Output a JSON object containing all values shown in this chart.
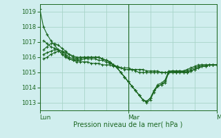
{
  "bg_color": "#d0eeee",
  "grid_color": "#a8d4c8",
  "line_color": "#1a6620",
  "xlabel": "Pression niveau de la mer( hPa )",
  "xtick_labels": [
    "Lun",
    "Mar",
    "Mer"
  ],
  "xtick_positions": [
    0,
    96,
    192
  ],
  "ylim": [
    1012.5,
    1019.5
  ],
  "yticks": [
    1013,
    1014,
    1015,
    1016,
    1017,
    1018,
    1019
  ],
  "xlim": [
    0,
    192
  ],
  "series": [
    {
      "x": [
        0,
        4,
        8,
        12,
        16,
        20,
        24,
        28,
        32,
        36,
        40,
        44,
        48,
        52,
        56,
        60,
        64,
        68,
        72,
        76,
        80,
        84,
        88,
        92,
        96,
        100,
        104,
        108,
        112,
        116,
        120,
        124,
        128,
        132,
        136,
        140,
        144,
        148,
        152,
        156,
        160,
        164,
        168,
        172,
        176,
        180,
        184,
        188,
        192
      ],
      "y": [
        1019.2,
        1018.0,
        1017.5,
        1017.1,
        1016.8,
        1016.5,
        1016.2,
        1016.0,
        1015.9,
        1015.8,
        1015.8,
        1015.7,
        1015.7,
        1015.7,
        1015.6,
        1015.6,
        1015.6,
        1015.5,
        1015.5,
        1015.5,
        1015.4,
        1015.4,
        1015.3,
        1015.3,
        1015.3,
        1015.2,
        1015.2,
        1015.2,
        1015.2,
        1015.1,
        1015.1,
        1015.1,
        1015.1,
        1015.0,
        1015.0,
        1015.0,
        1015.0,
        1015.0,
        1015.0,
        1015.1,
        1015.1,
        1015.2,
        1015.3,
        1015.4,
        1015.5,
        1015.5,
        1015.5,
        1015.5,
        1015.5
      ]
    },
    {
      "x": [
        4,
        8,
        12,
        16,
        20,
        24,
        28,
        32,
        36,
        40,
        44,
        48,
        52,
        56,
        60,
        64,
        68,
        72,
        76,
        80,
        84,
        88,
        92,
        96,
        100,
        104,
        108,
        112,
        116,
        120,
        124,
        128,
        132,
        136,
        140,
        144,
        148,
        152,
        156,
        160,
        164,
        168,
        172,
        176,
        180,
        184,
        188,
        192
      ],
      "y": [
        1017.1,
        1016.9,
        1016.7,
        1016.6,
        1016.5,
        1016.4,
        1016.3,
        1016.2,
        1016.1,
        1016.0,
        1016.0,
        1016.0,
        1015.9,
        1015.9,
        1015.9,
        1015.8,
        1015.8,
        1015.7,
        1015.6,
        1015.5,
        1015.4,
        1015.3,
        1015.2,
        1015.2,
        1015.2,
        1015.1,
        1015.0,
        1015.0,
        1015.0,
        1015.0,
        1015.0,
        1015.0,
        1015.0,
        1015.0,
        1015.0,
        1015.0,
        1015.0,
        1015.1,
        1015.1,
        1015.2,
        1015.3,
        1015.4,
        1015.5,
        1015.5,
        1015.5,
        1015.5,
        1015.5,
        1015.5
      ]
    },
    {
      "x": [
        4,
        8,
        12,
        16,
        20,
        24,
        28,
        32,
        36,
        40,
        44,
        48,
        52,
        56,
        60,
        64,
        68,
        72,
        76,
        80,
        84,
        88,
        92,
        96,
        100,
        104,
        108,
        112,
        116,
        120,
        124,
        128,
        132,
        136,
        140,
        144,
        148,
        152,
        156,
        160,
        164,
        168,
        172,
        176,
        180,
        184,
        188,
        192
      ],
      "y": [
        1016.5,
        1016.7,
        1016.9,
        1016.9,
        1016.8,
        1016.6,
        1016.4,
        1016.2,
        1016.0,
        1015.9,
        1016.0,
        1016.0,
        1016.0,
        1016.0,
        1016.0,
        1016.0,
        1015.9,
        1015.8,
        1015.7,
        1015.5,
        1015.3,
        1015.0,
        1014.7,
        1014.4,
        1014.1,
        1013.8,
        1013.5,
        1013.2,
        1013.1,
        1013.3,
        1013.8,
        1014.1,
        1014.2,
        1014.3,
        1015.0,
        1015.1,
        1015.1,
        1015.1,
        1015.0,
        1015.0,
        1015.1,
        1015.2,
        1015.3,
        1015.4,
        1015.4,
        1015.5,
        1015.5,
        1015.5
      ]
    },
    {
      "x": [
        4,
        8,
        12,
        16,
        20,
        24,
        28,
        32,
        36,
        40,
        44,
        48,
        52,
        56,
        60,
        64,
        68,
        72,
        76,
        80,
        84,
        88,
        92,
        96,
        100,
        104,
        108,
        112,
        116,
        120,
        124,
        128,
        132,
        136,
        140,
        144,
        148,
        152,
        156,
        160,
        164,
        168,
        172,
        176,
        180,
        184,
        188,
        192
      ],
      "y": [
        1016.2,
        1016.3,
        1016.4,
        1016.5,
        1016.5,
        1016.4,
        1016.2,
        1016.0,
        1015.9,
        1015.8,
        1015.9,
        1016.0,
        1016.0,
        1016.0,
        1016.0,
        1016.0,
        1015.9,
        1015.8,
        1015.7,
        1015.5,
        1015.3,
        1015.0,
        1014.7,
        1014.4,
        1014.1,
        1013.8,
        1013.5,
        1013.2,
        1013.1,
        1013.3,
        1013.8,
        1014.2,
        1014.3,
        1014.5,
        1015.1,
        1015.1,
        1015.1,
        1015.1,
        1015.0,
        1015.0,
        1015.1,
        1015.2,
        1015.3,
        1015.4,
        1015.4,
        1015.5,
        1015.5,
        1015.5
      ]
    },
    {
      "x": [
        4,
        8,
        12,
        16,
        20,
        24,
        28,
        32,
        36,
        40,
        44,
        48,
        52,
        56,
        60,
        64,
        68,
        72,
        76,
        80,
        84,
        88,
        92,
        96,
        100,
        104,
        108,
        112,
        116,
        120,
        124,
        128,
        132,
        136,
        140,
        144,
        148,
        152,
        156,
        160,
        164,
        168,
        172,
        176,
        180,
        184,
        188,
        192
      ],
      "y": [
        1015.9,
        1016.0,
        1016.2,
        1016.3,
        1016.4,
        1016.3,
        1016.1,
        1015.9,
        1015.8,
        1015.7,
        1015.8,
        1015.9,
        1016.0,
        1016.0,
        1016.0,
        1016.0,
        1015.9,
        1015.8,
        1015.7,
        1015.5,
        1015.3,
        1015.0,
        1014.7,
        1014.4,
        1014.1,
        1013.8,
        1013.5,
        1013.2,
        1013.0,
        1013.2,
        1013.7,
        1014.1,
        1014.2,
        1014.4,
        1015.0,
        1015.1,
        1015.0,
        1015.0,
        1015.0,
        1015.0,
        1015.1,
        1015.2,
        1015.3,
        1015.4,
        1015.4,
        1015.5,
        1015.5,
        1015.5
      ]
    }
  ]
}
